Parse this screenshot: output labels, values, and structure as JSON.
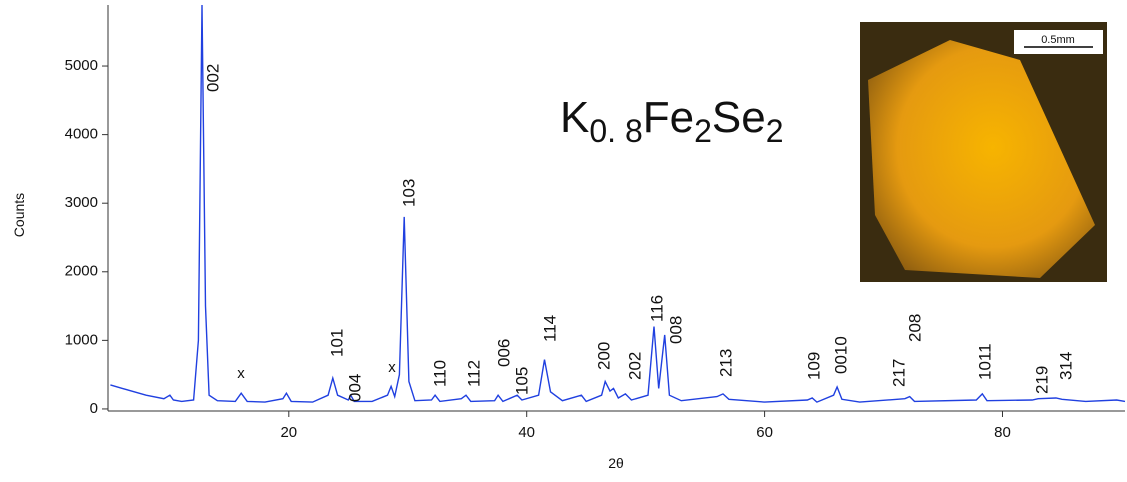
{
  "chart_data": {
    "type": "line",
    "title_parts": [
      "K",
      "0. 8",
      "Fe",
      "2",
      "Se",
      "2"
    ],
    "xlabel": "2θ",
    "ylabel": "Counts",
    "xlim": [
      4.8,
      90.3
    ],
    "ylim": [
      -30,
      5890
    ],
    "xticks": [
      20,
      40,
      60,
      80
    ],
    "yticks": [
      0,
      1000,
      2000,
      3000,
      4000,
      5000
    ],
    "series": [
      {
        "color": "#2040e0",
        "x": [
          5,
          6,
          8,
          9.5,
          10,
          10.3,
          11,
          12,
          12.4,
          12.7,
          13.0,
          13.3,
          14,
          15.5,
          16,
          16.5,
          18,
          19.5,
          19.8,
          20.2,
          22,
          23.3,
          23.7,
          24.1,
          25,
          25.2,
          25.5,
          27,
          28.3,
          28.6,
          28.9,
          29.3,
          29.7,
          30.1,
          30.6,
          32,
          32.3,
          32.7,
          34.5,
          34.9,
          35.3,
          37.3,
          37.6,
          38,
          39.2,
          39.6,
          41.0,
          41.5,
          42,
          43,
          44.6,
          45,
          46.3,
          46.6,
          47,
          47.3,
          47.7,
          48.3,
          48.8,
          50.2,
          50.7,
          51.1,
          51.6,
          52,
          53,
          56,
          56.5,
          57,
          60,
          63.6,
          64,
          64.4,
          65.8,
          66.1,
          66.5,
          68,
          71.8,
          72.2,
          72.6,
          77.8,
          78.3,
          78.7,
          82.5,
          83,
          84.5,
          85,
          87,
          89.6,
          90.3
        ],
        "values": [
          350,
          300,
          200,
          150,
          200,
          130,
          110,
          130,
          1000,
          5890,
          1500,
          200,
          120,
          110,
          230,
          110,
          100,
          150,
          230,
          110,
          100,
          200,
          450,
          200,
          130,
          200,
          110,
          110,
          200,
          330,
          180,
          500,
          2800,
          400,
          120,
          130,
          200,
          110,
          150,
          200,
          110,
          120,
          200,
          110,
          200,
          130,
          200,
          720,
          250,
          120,
          200,
          110,
          200,
          400,
          260,
          300,
          160,
          220,
          130,
          200,
          1200,
          300,
          1080,
          200,
          120,
          180,
          220,
          140,
          100,
          130,
          160,
          100,
          200,
          320,
          140,
          100,
          150,
          180,
          110,
          130,
          220,
          120,
          130,
          150,
          160,
          140,
          110,
          130,
          110
        ]
      }
    ],
    "peak_labels": [
      "002",
      "103",
      "101",
      "004",
      "x",
      "x",
      "110",
      "112",
      "006",
      "105",
      "114",
      "200",
      "202",
      "116",
      "008",
      "213",
      "109",
      "0010",
      "217",
      "208",
      "1011",
      "219",
      "314"
    ],
    "inset_scale_label": "0.5mm"
  }
}
